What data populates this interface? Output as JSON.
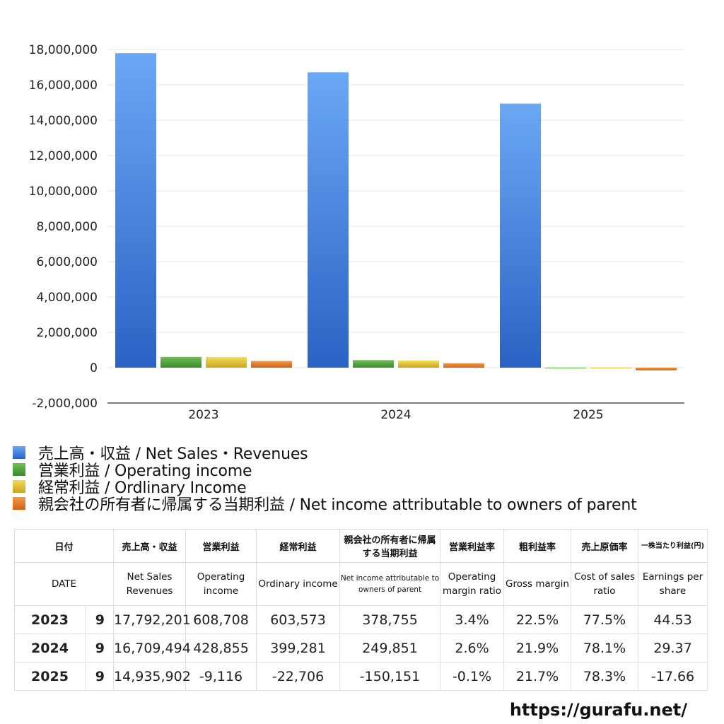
{
  "chart_data": {
    "type": "bar",
    "categories": [
      "2023",
      "2024",
      "2025"
    ],
    "series": [
      {
        "name": "売上高・収益 / Net Sales・Revenues",
        "color": "#3f7fd9",
        "values": [
          17792201,
          16709494,
          14935902
        ]
      },
      {
        "name": "営業利益 / Operating income",
        "color": "#4e9c3c",
        "values": [
          608708,
          428855,
          -9116
        ]
      },
      {
        "name": "経常利益 / Ordlinary Income",
        "color": "#d9bb2c",
        "values": [
          603573,
          399281,
          -22706
        ]
      },
      {
        "name": "親会社の所有者に帰属する当期利益 / Net income attributable to owners of parent",
        "color": "#de7a2a",
        "values": [
          378755,
          249851,
          -150151
        ]
      }
    ],
    "ylim": [
      -2000000,
      18000000
    ],
    "yticks": [
      -2000000,
      0,
      2000000,
      4000000,
      6000000,
      8000000,
      10000000,
      12000000,
      14000000,
      16000000,
      18000000
    ],
    "ytick_labels": [
      "-2,000,000",
      "0",
      "2,000,000",
      "4,000,000",
      "6,000,000",
      "8,000,000",
      "10,000,000",
      "12,000,000",
      "14,000,000",
      "16,000,000",
      "18,000,000"
    ],
    "grid": true,
    "legend": "bottom"
  },
  "table": {
    "headers_jp": [
      "日付",
      "売上高・収益",
      "営業利益",
      "経常利益",
      "親会社の所有者に帰属する当期利益",
      "営業利益率",
      "粗利益率",
      "売上原価率",
      "一株当たり利益(円)"
    ],
    "headers_en": [
      "DATE",
      "Net Sales Revenues",
      "Operating income",
      "Ordinary income",
      "Net income attributable to owners of parent",
      "Operating margin ratio",
      "Gross margin",
      "Cost of sales ratio",
      "Earnings per share"
    ],
    "rows": [
      {
        "year": "2023",
        "month": "9",
        "values": [
          "17,792,201",
          "608,708",
          "603,573",
          "378,755",
          "3.4%",
          "22.5%",
          "77.5%",
          "44.53"
        ]
      },
      {
        "year": "2024",
        "month": "9",
        "values": [
          "16,709,494",
          "428,855",
          "399,281",
          "249,851",
          "2.6%",
          "21.9%",
          "78.1%",
          "29.37"
        ]
      },
      {
        "year": "2025",
        "month": "9",
        "values": [
          "14,935,902",
          "-9,116",
          "-22,706",
          "-150,151",
          "-0.1%",
          "21.7%",
          "78.3%",
          "-17.66"
        ]
      }
    ]
  },
  "site": "https://gurafu.net/"
}
